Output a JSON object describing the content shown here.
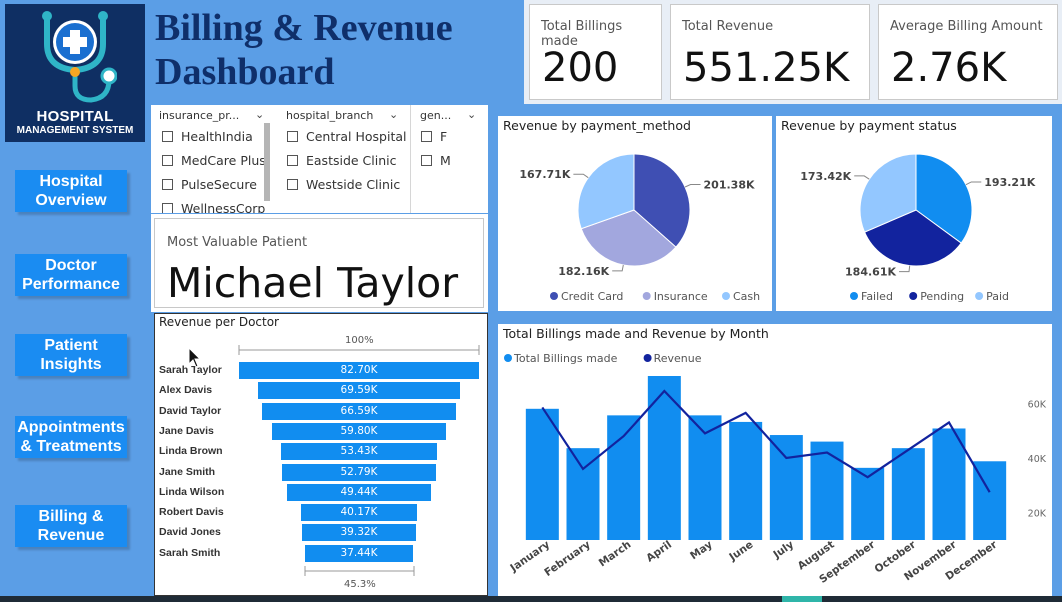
{
  "logo": {
    "line1": "HOSPITAL",
    "line2": "MANAGEMENT SYSTEM",
    "icon": "stethoscope-cross-icon"
  },
  "nav": [
    {
      "label": "Hospital Overview"
    },
    {
      "label": "Doctor Performance"
    },
    {
      "label": "Patient Insights"
    },
    {
      "label": "Appointments & Treatments"
    },
    {
      "label": "Billing & Revenue"
    }
  ],
  "title": {
    "line1": "Billing & Revenue",
    "line2": "Dashboard"
  },
  "kpis": [
    {
      "label": "Total Billings made",
      "value": "200"
    },
    {
      "label": "Total Revenue",
      "value": "551.25K"
    },
    {
      "label": "Average Billing Amount",
      "value": "2.76K"
    }
  ],
  "slicers": {
    "insurance": {
      "header": "insurance_pr...",
      "options": [
        "HealthIndia",
        "MedCare Plus",
        "PulseSecure",
        "WellnessCorp"
      ]
    },
    "branch": {
      "header": "hospital_branch",
      "options": [
        "Central Hospital",
        "Eastside Clinic",
        "Westside Clinic"
      ]
    },
    "gender": {
      "header": "gen...",
      "options": [
        "F",
        "M"
      ]
    }
  },
  "mvp": {
    "label": "Most Valuable Patient",
    "value": "Michael Taylor"
  },
  "colors": {
    "primary": "#118df0",
    "navy": "#12239e",
    "accent_dark": "#3f4fb3",
    "lavender": "#a2a7de",
    "light": "#93c7ff",
    "title": "#0f2f6a"
  },
  "chart_data": [
    {
      "type": "funnel",
      "title": "Revenue per Doctor",
      "top_label": "100%",
      "bottom_label": "45.3%",
      "categories": [
        "Sarah Taylor",
        "Alex Davis",
        "David Taylor",
        "Jane Davis",
        "Linda Brown",
        "Jane Smith",
        "Linda Wilson",
        "Robert Davis",
        "David Jones",
        "Sarah Smith"
      ],
      "values": [
        82.7,
        69.59,
        66.59,
        59.8,
        53.43,
        52.79,
        49.44,
        40.17,
        39.32,
        37.44
      ],
      "labels": [
        "82.70K",
        "69.59K",
        "66.59K",
        "59.80K",
        "53.43K",
        "52.79K",
        "49.44K",
        "40.17K",
        "39.32K",
        "37.44K"
      ],
      "unit": "K"
    },
    {
      "type": "pie",
      "title": "Revenue by payment_method",
      "categories": [
        "Credit Card",
        "Insurance",
        "Cash"
      ],
      "values": [
        201.38,
        182.16,
        167.71
      ],
      "labels": [
        "201.38K",
        "182.16K",
        "167.71K"
      ],
      "colors": [
        "#3f4fb3",
        "#a2a7de",
        "#93c7ff"
      ],
      "legend": "bottom"
    },
    {
      "type": "pie",
      "title": "Revenue by payment status",
      "categories": [
        "Failed",
        "Pending",
        "Paid"
      ],
      "values": [
        193.21,
        184.61,
        173.42
      ],
      "labels": [
        "193.21K",
        "184.61K",
        "173.42K"
      ],
      "colors": [
        "#118df0",
        "#12239e",
        "#93c7ff"
      ],
      "legend": "bottom"
    },
    {
      "type": "bar",
      "title": "Total Billings made and Revenue by Month",
      "categories": [
        "January",
        "February",
        "March",
        "April",
        "May",
        "June",
        "July",
        "August",
        "September",
        "October",
        "November",
        "December"
      ],
      "series": [
        {
          "name": "Total Billings made",
          "type": "bar",
          "values": [
            20,
            14,
            19,
            25,
            19,
            18,
            16,
            15,
            11,
            14,
            17,
            12
          ]
        },
        {
          "name": "Revenue",
          "type": "line",
          "values": [
            58.5,
            36.0,
            48.0,
            64.5,
            49.0,
            56.5,
            40.0,
            42.0,
            33.0,
            43.0,
            53.0,
            27.5
          ]
        }
      ],
      "bars_ylim": [
        0,
        25
      ],
      "revenue_axis": {
        "ticks": [
          "20K",
          "40K",
          "60K"
        ],
        "ylim": [
          10,
          70
        ]
      },
      "legend": "top-left",
      "grid": false
    }
  ]
}
